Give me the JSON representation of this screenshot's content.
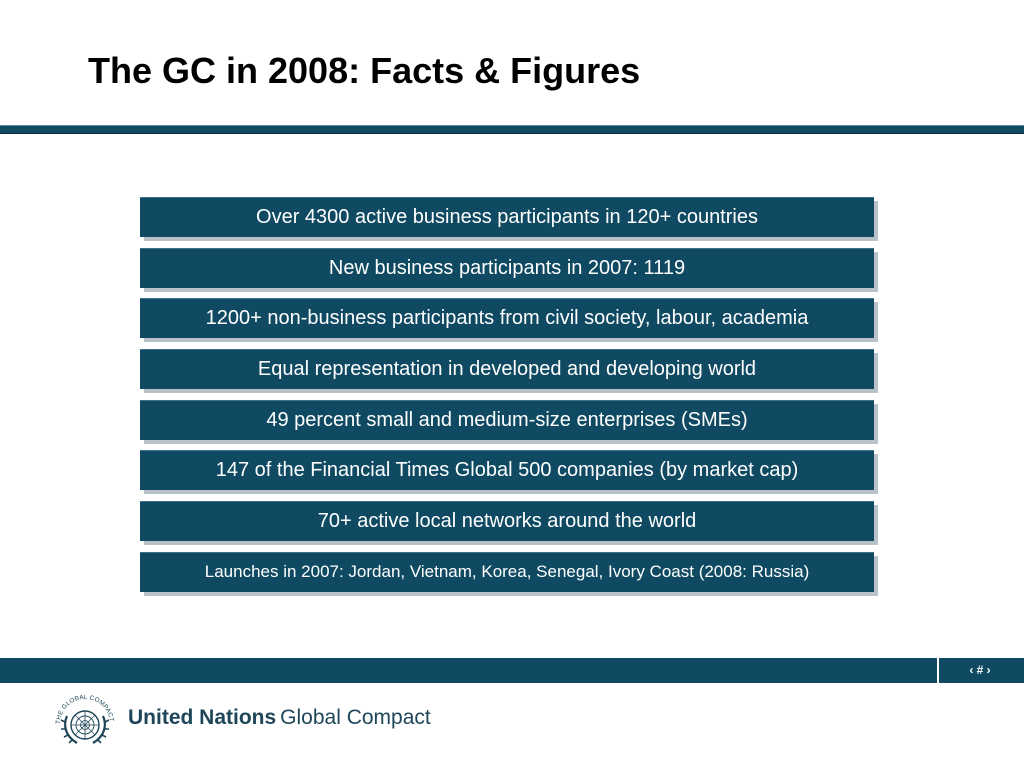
{
  "slide": {
    "title": "The GC in 2008: Facts & Figures",
    "facts": [
      "Over 4300 active business participants in 120+ countries",
      "New business participants in 2007: 1119",
      "1200+ non-business participants from civil society, labour, academia",
      "Equal representation in developed and developing world",
      "49 percent small and medium-size enterprises (SMEs)",
      "147 of the Financial Times Global 500 companies (by market cap)",
      "70+ active local networks around the world",
      "Launches in 2007: Jordan, Vietnam, Korea, Senegal, Ivory Coast (2008: Russia)"
    ]
  },
  "footer": {
    "page_number": "‹ # ›",
    "org_name_bold": "United Nations",
    "org_name_light": "Global Compact",
    "logo_ring_text": "THE GLOBAL COMPACT",
    "logo_icon": "un-globe-laurel-icon"
  },
  "colors": {
    "primary_teal": "#0f4a62",
    "shadow_gray": "#b9c2c8",
    "org_text": "#1f4658"
  }
}
